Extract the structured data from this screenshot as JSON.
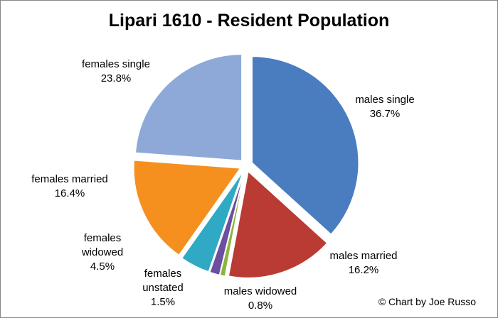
{
  "chart_data": {
    "type": "pie",
    "title": "Lipari 1610 - Resident Population",
    "categories": [
      "males single",
      "males married",
      "males widowed",
      "females unstated",
      "females widowed",
      "females married",
      "females single"
    ],
    "values": [
      36.7,
      16.2,
      0.8,
      1.5,
      4.5,
      16.4,
      23.8
    ],
    "value_labels": [
      "36.7%",
      "16.2%",
      "0.8%",
      "1.5%",
      "4.5%",
      "16.4%",
      "23.8%"
    ],
    "colors": [
      "#4a7cc0",
      "#b93b33",
      "#8db43f",
      "#6b4fa0",
      "#2fa9c4",
      "#f5901e",
      "#8ea9d8"
    ],
    "annotation": "© Chart by Joe Russo"
  }
}
